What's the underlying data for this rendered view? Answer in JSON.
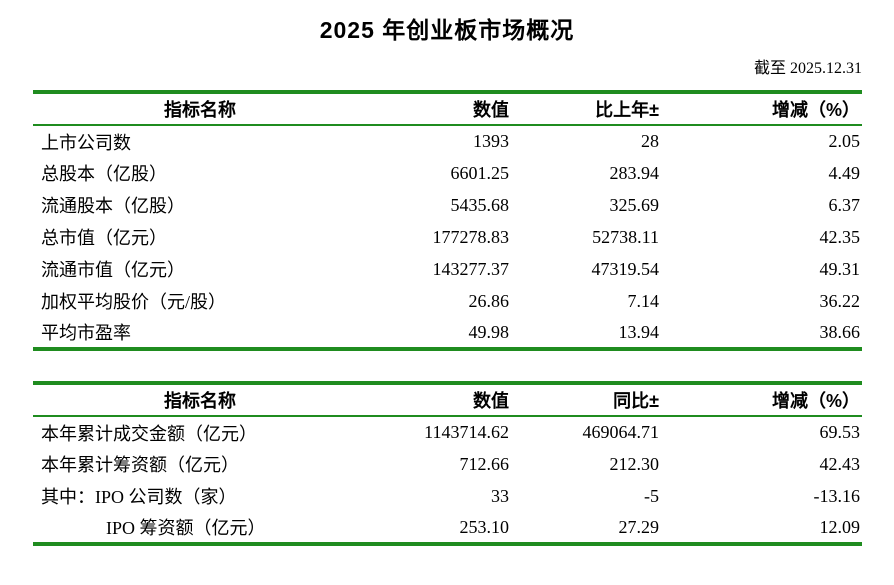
{
  "page": {
    "title": "2025 年创业板市场概况",
    "as_of": "截至 2025.12.31"
  },
  "colors": {
    "line_green": "#1f8c1f",
    "text": "#000000",
    "background": "#ffffff"
  },
  "overview_table": {
    "headers": [
      "指标名称",
      "数值",
      "比上年±",
      "增减（%）"
    ],
    "rows": [
      {
        "cells": [
          "上市公司数",
          "1393",
          "28",
          "2.05"
        ]
      },
      {
        "cells": [
          "总股本（亿股）",
          "6601.25",
          "283.94",
          "4.49"
        ]
      },
      {
        "cells": [
          "流通股本（亿股）",
          "5435.68",
          "325.69",
          "6.37"
        ]
      },
      {
        "cells": [
          "总市值（亿元）",
          "177278.83",
          "52738.11",
          "42.35"
        ]
      },
      {
        "cells": [
          "流通市值（亿元）",
          "143277.37",
          "47319.54",
          "49.31"
        ]
      },
      {
        "cells": [
          "加权平均股价（元/股）",
          "26.86",
          "7.14",
          "36.22"
        ]
      },
      {
        "cells": [
          "平均市盈率",
          "49.98",
          "13.94",
          "38.66"
        ]
      }
    ]
  },
  "yearly_table": {
    "headers": [
      "指标名称",
      "数值",
      "同比±",
      "增减（%）"
    ],
    "rows": [
      {
        "cells": [
          "本年累计成交金额（亿元）",
          "1143714.62",
          "469064.71",
          "69.53"
        ]
      },
      {
        "cells": [
          "本年累计筹资额（亿元）",
          "712.66",
          "212.30",
          "42.43"
        ]
      },
      {
        "cells": [
          "其中：IPO 公司数（家）",
          "33",
          "-5",
          "-13.16"
        ]
      },
      {
        "cells": [
          "IPO 筹资额（亿元）",
          "253.10",
          "27.29",
          "12.09"
        ],
        "indent": true
      }
    ]
  }
}
